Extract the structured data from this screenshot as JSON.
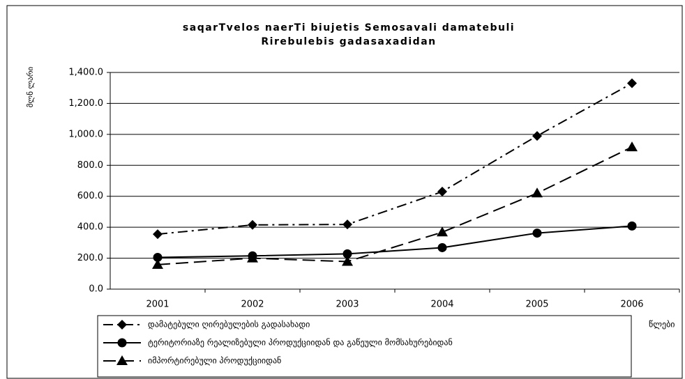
{
  "chart_data": {
    "type": "line",
    "title": "saqarTvelos naerTi biujetis Semosavali damatebuli",
    "subtitle": "Rirebulebis gadasaxadidan",
    "ylabel": "მლნ ლარი",
    "xlabel": "წლები",
    "categories": [
      "2001",
      "2002",
      "2003",
      "2004",
      "2005",
      "2006"
    ],
    "series": [
      {
        "name": "დამატებული ღირებულების გადასახადი",
        "color": "#000000",
        "marker": "diamond",
        "dash": "14 6 3 6",
        "values": [
          355,
          415,
          418,
          630,
          990,
          1330
        ]
      },
      {
        "name": "ტერიტორიაზე რეალიზებული პროდუქციიდან და გაწეული მომსახურებიდან",
        "color": "#000000",
        "marker": "circle",
        "dash": "none",
        "values": [
          205,
          215,
          228,
          268,
          362,
          408
        ]
      },
      {
        "name": "იმპორტირებული პროდუქციიდან",
        "color": "#000000",
        "marker": "triangle",
        "dash": "18 8",
        "values": [
          158,
          200,
          178,
          368,
          620,
          918
        ]
      }
    ],
    "ylim": [
      0,
      1400
    ],
    "yticks": [
      {
        "value": 0,
        "label": "0.0"
      },
      {
        "value": 200,
        "label": "200.0"
      },
      {
        "value": 400,
        "label": "400.0"
      },
      {
        "value": 600,
        "label": "600.0"
      },
      {
        "value": 800,
        "label": "800.0"
      },
      {
        "value": 1000,
        "label": "1,000.0"
      },
      {
        "value": 1200,
        "label": "1,200.0"
      },
      {
        "value": 1400,
        "label": "1,400.0"
      }
    ],
    "grid": true
  }
}
